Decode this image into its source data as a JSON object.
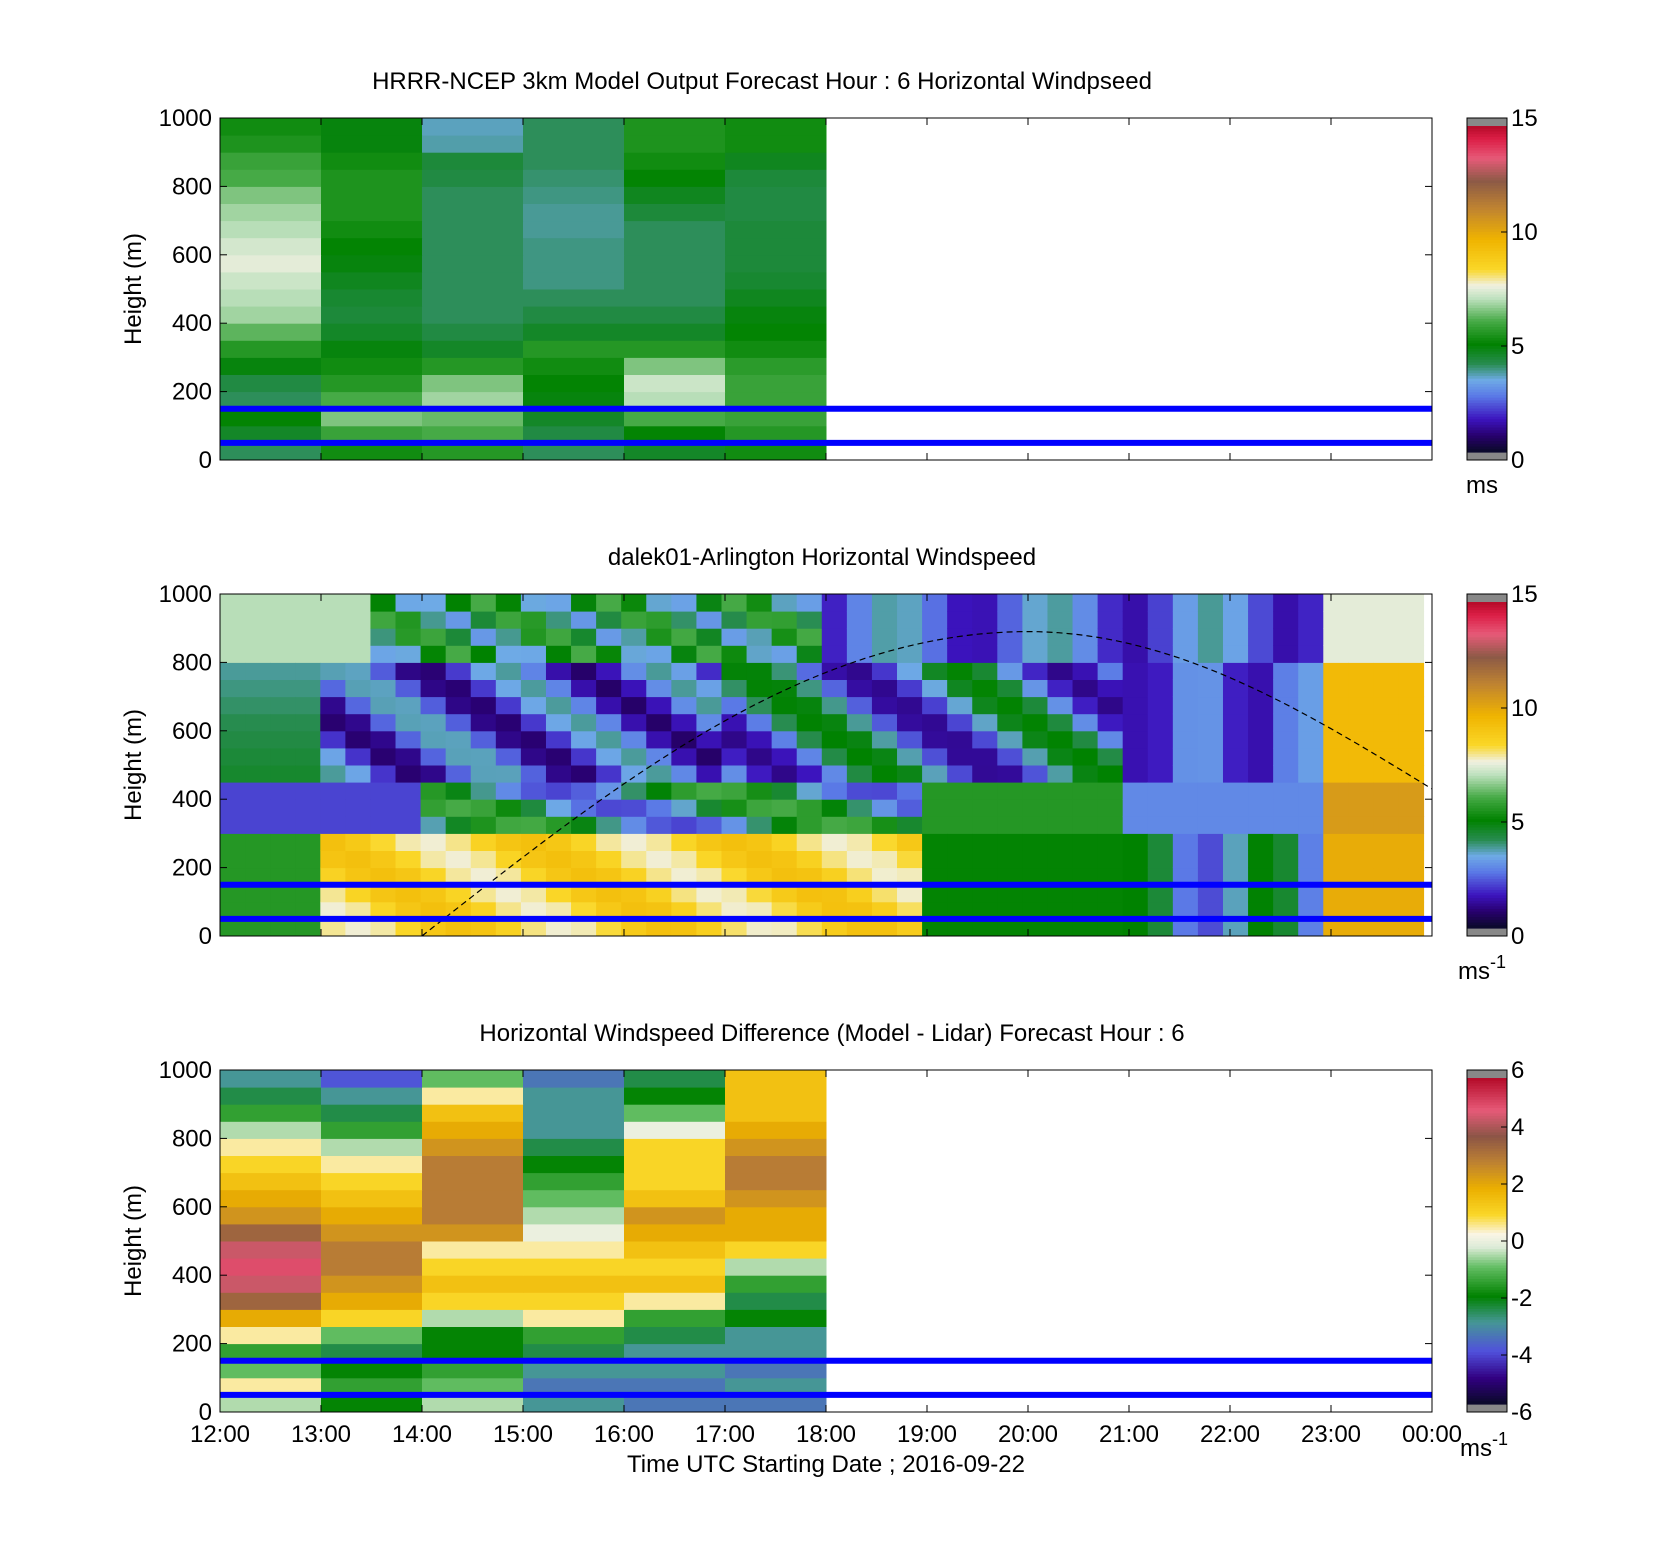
{
  "figure": {
    "xlabel": "Time UTC  Starting Date ; 2016-09-22",
    "x_tick_labels": [
      "12:00",
      "13:00",
      "14:00",
      "15:00",
      "16:00",
      "17:00",
      "18:00",
      "19:00",
      "20:00",
      "21:00",
      "22:00",
      "23:00",
      "00:00"
    ],
    "reference_heights_m": [
      50,
      150
    ],
    "reference_line_color": "#0000ff"
  },
  "chart_data": [
    {
      "id": "model",
      "type": "heatmap",
      "title": "HRRR-NCEP 3km Model Output   Forecast Hour : 6 Horizontal Windpseed",
      "ylabel": "Height (m)",
      "xlim": [
        "12:00",
        "00:00"
      ],
      "ylim": [
        0,
        1000
      ],
      "y_ticks": [
        0,
        200,
        400,
        600,
        800,
        1000
      ],
      "data_end": "18:00",
      "x_bins": [
        "12:00",
        "13:00",
        "14:00",
        "15:00",
        "16:00",
        "17:00"
      ],
      "y_levels_m": [
        25,
        75,
        125,
        175,
        225,
        275,
        325,
        375,
        425,
        475,
        525,
        575,
        625,
        675,
        725,
        775,
        825,
        875,
        925,
        975
      ],
      "values_ms": [
        [
          4.0,
          5.2,
          5.5,
          4.0,
          4.5,
          5.2
        ],
        [
          4.5,
          5.8,
          6.0,
          4.2,
          5.0,
          5.5
        ],
        [
          5.0,
          6.5,
          6.3,
          4.5,
          6.0,
          5.8
        ],
        [
          4.0,
          6.0,
          6.8,
          4.8,
          7.0,
          5.8
        ],
        [
          4.2,
          5.5,
          6.5,
          5.0,
          7.2,
          5.8
        ],
        [
          4.8,
          5.2,
          5.5,
          5.2,
          6.5,
          5.6
        ],
        [
          5.5,
          4.8,
          4.5,
          5.5,
          5.5,
          5.2
        ],
        [
          6.2,
          4.5,
          4.2,
          4.5,
          4.5,
          5.0
        ],
        [
          6.8,
          4.3,
          4.0,
          4.2,
          4.2,
          4.8
        ],
        [
          7.0,
          4.4,
          4.0,
          4.0,
          4.0,
          4.6
        ],
        [
          7.2,
          4.6,
          4.0,
          3.8,
          4.0,
          4.4
        ],
        [
          7.5,
          4.8,
          4.0,
          3.8,
          4.0,
          4.3
        ],
        [
          7.3,
          5.0,
          4.0,
          3.8,
          4.0,
          4.3
        ],
        [
          7.0,
          5.2,
          4.0,
          3.7,
          4.0,
          4.3
        ],
        [
          6.8,
          5.4,
          4.0,
          3.7,
          4.3,
          4.2
        ],
        [
          6.5,
          5.4,
          4.0,
          3.8,
          4.6,
          4.2
        ],
        [
          6.0,
          5.4,
          4.2,
          3.9,
          5.0,
          4.3
        ],
        [
          5.8,
          5.2,
          4.3,
          4.0,
          5.2,
          4.6
        ],
        [
          5.4,
          4.8,
          3.6,
          4.0,
          5.4,
          5.2
        ],
        [
          5.2,
          4.8,
          3.5,
          4.0,
          5.4,
          5.2
        ]
      ],
      "colorbar": {
        "min": 0,
        "max": 15,
        "ticks": [
          0,
          5,
          10,
          15
        ],
        "unit": "ms"
      }
    },
    {
      "id": "lidar",
      "type": "heatmap",
      "title": "dalek01-Arlington  Horizontal Windspeed",
      "ylabel": "Height (m)",
      "xlim": [
        "12:00",
        "00:00"
      ],
      "ylim": [
        0,
        1000
      ],
      "y_ticks": [
        0,
        200,
        400,
        600,
        800,
        1000
      ],
      "data_range": [
        "12:00",
        "23:55"
      ],
      "x_cols": 48,
      "y_rows": 20,
      "description_profile": "low-level jet of ~8-9 m/s below 300 m from 13:00-19:00, weak 1-3 m/s winds between 400-800 m, 4-6 m/s green band 19:00-21:00, 9-12 m/s after 23:00",
      "overlay_curve": {
        "style": "dashed",
        "color": "#000000",
        "peak_height_m": 890,
        "peak_time": "20:00",
        "start": [
          "14:00",
          0
        ],
        "end": [
          "00:00",
          430
        ]
      },
      "colorbar": {
        "min": 0,
        "max": 15,
        "ticks": [
          0,
          5,
          10,
          15
        ],
        "unit": "ms",
        "unit_superscript": "-1"
      }
    },
    {
      "id": "difference",
      "type": "heatmap",
      "title": "Horizontal Windspeed Difference (Model - Lidar) Forecast Hour : 6",
      "ylabel": "Height (m)",
      "xlim": [
        "12:00",
        "00:00"
      ],
      "ylim": [
        0,
        1000
      ],
      "y_ticks": [
        0,
        200,
        400,
        600,
        800,
        1000
      ],
      "data_end": "18:00",
      "x_bins": [
        "12:00",
        "13:00",
        "14:00",
        "15:00",
        "16:00",
        "17:00"
      ],
      "y_levels_m": [
        25,
        75,
        125,
        175,
        225,
        275,
        325,
        375,
        425,
        475,
        525,
        575,
        625,
        675,
        725,
        775,
        825,
        875,
        925,
        975
      ],
      "values_ms": [
        [
          -0.5,
          -2.0,
          -0.5,
          -3.0,
          -3.5,
          -3.5
        ],
        [
          0.5,
          -1.5,
          -1.0,
          -3.5,
          -3.5,
          -3.0
        ],
        [
          -1.0,
          -2.0,
          -1.5,
          -3.0,
          -3.0,
          -3.5
        ],
        [
          -1.5,
          -2.5,
          -2.0,
          -2.5,
          -3.0,
          -3.0
        ],
        [
          0.5,
          -1.0,
          -2.0,
          -1.5,
          -2.5,
          -3.0
        ],
        [
          2.0,
          1.0,
          -0.5,
          0.5,
          -1.5,
          -2.0
        ],
        [
          3.5,
          2.0,
          1.0,
          1.0,
          0.5,
          -2.5
        ],
        [
          4.5,
          2.5,
          1.5,
          1.5,
          1.5,
          -1.5
        ],
        [
          5.0,
          3.0,
          1.0,
          1.0,
          1.0,
          -0.5
        ],
        [
          4.5,
          3.0,
          0.5,
          0.5,
          1.5,
          1.0
        ],
        [
          3.5,
          2.5,
          2.5,
          0.0,
          2.0,
          2.0
        ],
        [
          2.5,
          2.0,
          3.0,
          -0.5,
          2.5,
          2.0
        ],
        [
          2.0,
          1.5,
          3.0,
          -1.0,
          1.5,
          2.5
        ],
        [
          1.5,
          1.0,
          3.0,
          -1.5,
          1.0,
          3.0
        ],
        [
          1.0,
          0.5,
          3.0,
          -2.0,
          1.0,
          3.0
        ],
        [
          0.5,
          -0.5,
          2.5,
          -2.5,
          1.0,
          2.5
        ],
        [
          -0.5,
          -1.5,
          2.0,
          -3.0,
          0.0,
          2.0
        ],
        [
          -1.5,
          -2.5,
          1.5,
          -3.0,
          -1.0,
          1.5
        ],
        [
          -2.5,
          -3.0,
          0.5,
          -3.0,
          -2.0,
          1.5
        ],
        [
          -3.0,
          -4.0,
          -1.0,
          -3.5,
          -2.5,
          1.5
        ]
      ],
      "colorbar": {
        "min": -6,
        "max": 6,
        "ticks": [
          -6,
          -4,
          -2,
          0,
          2,
          4,
          6
        ],
        "unit": "ms",
        "unit_superscript": "-1"
      }
    }
  ]
}
